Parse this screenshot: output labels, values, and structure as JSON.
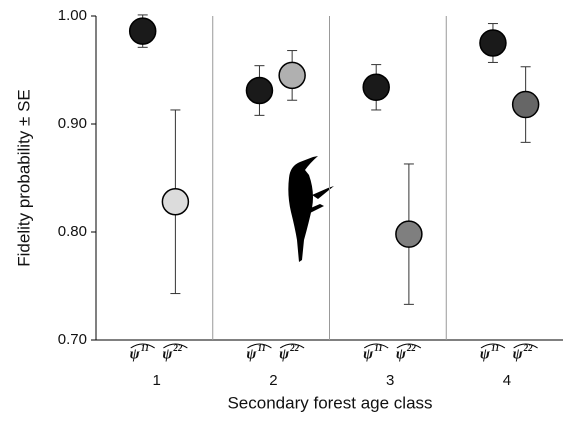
{
  "chart_data": {
    "type": "scatter",
    "y_label": "Fidelity probability ± SE",
    "x_label": "Secondary forest age class",
    "categories": [
      "1",
      "2",
      "3",
      "4"
    ],
    "series": [
      {
        "name": "ψ",
        "superscript": "11",
        "colors": [
          "#1a1a1a",
          "#1a1a1a",
          "#1a1a1a",
          "#1a1a1a"
        ],
        "values": [
          0.986,
          0.931,
          0.934,
          0.975
        ],
        "errors": [
          0.015,
          0.023,
          0.021,
          0.018
        ]
      },
      {
        "name": "ψ",
        "superscript": "22",
        "colors": [
          "#dcdcdc",
          "#b0b0b0",
          "#7f7f7f",
          "#666666"
        ],
        "values": [
          0.828,
          0.945,
          0.798,
          0.918
        ],
        "errors": [
          0.085,
          0.023,
          0.065,
          0.035
        ]
      }
    ],
    "ylim": [
      0.7,
      1.0
    ],
    "yticks": [
      {
        "value": 0.7,
        "label": "0.70"
      },
      {
        "value": 0.8,
        "label": "0.80"
      },
      {
        "value": 0.9,
        "label": "0.90"
      },
      {
        "value": 1.0,
        "label": "1.00"
      }
    ]
  }
}
